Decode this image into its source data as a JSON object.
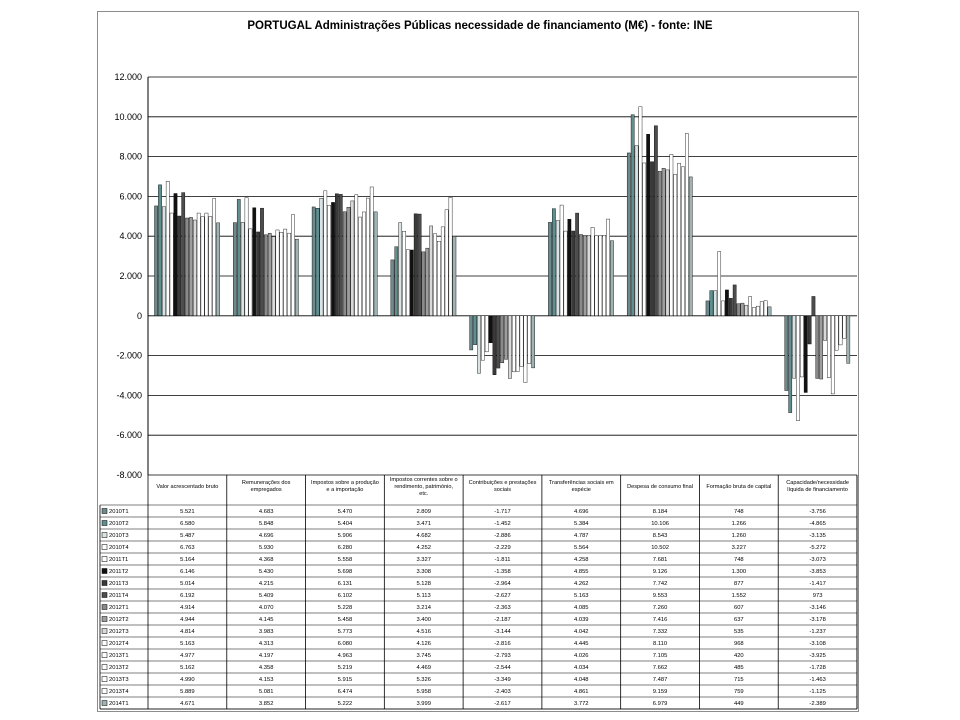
{
  "chart_data": {
    "type": "bar",
    "title": "PORTUGAL Administrações Públicas necessidade de financiamento (M€) - fonte: INE",
    "ylim": [
      -8000,
      12000
    ],
    "ytick_values": [
      12000,
      10000,
      8000,
      6000,
      4000,
      2000,
      0,
      -2000,
      -4000,
      -6000,
      -8000
    ],
    "ytick_labels": [
      "12.000",
      "10.000",
      "8.000",
      "6.000",
      "4.000",
      "2.000",
      "0",
      "-2.000",
      "-4.000",
      "-6.000",
      "-8.000"
    ],
    "grid": true,
    "legend": "data-table",
    "categories": [
      "Valor acrescentado bruto",
      "Remunerações dos empregados",
      "Impostos sobre a produção e a importação",
      "Impostos correntes sobre o rendimento, património, etc.",
      "Contribuições e prestações sociais",
      "Transferências sociais em espécie",
      "Despesa de consumo final",
      "Formação bruta de capital",
      "Capacidade/necessidade líquida de financiamento"
    ],
    "series": [
      {
        "name": "2010T1",
        "color": "#6f8a8c",
        "values": [
          5521,
          4683,
          5470,
          2809,
          -1717,
          4696,
          8184,
          748,
          -3756
        ],
        "labels": [
          "5.521",
          "4.683",
          "5.470",
          "2.809",
          "-1.717",
          "4.696",
          "8.184",
          "748",
          "-3.756"
        ]
      },
      {
        "name": "2010T2",
        "color": "#5f8f8f",
        "values": [
          6580,
          5848,
          5404,
          3471,
          -1452,
          5384,
          10106,
          1266,
          -4865
        ],
        "labels": [
          "6.580",
          "5.848",
          "5.404",
          "3.471",
          "-1.452",
          "5.384",
          "10.106",
          "1.266",
          "-4.865"
        ]
      },
      {
        "name": "2010T3",
        "color": "#d9e3e3",
        "values": [
          5487,
          4696,
          5906,
          4682,
          -2886,
          4787,
          8543,
          1260,
          -3135
        ],
        "labels": [
          "5.487",
          "4.696",
          "5.906",
          "4.682",
          "-2.886",
          "4.787",
          "8.543",
          "1.260",
          "-3.135"
        ]
      },
      {
        "name": "2010T4",
        "color": "#ffffff",
        "values": [
          6763,
          5930,
          6280,
          4252,
          -2229,
          5564,
          10502,
          3227,
          -5272
        ],
        "labels": [
          "6.763",
          "5.930",
          "6.280",
          "4.252",
          "-2.229",
          "5.564",
          "10.502",
          "3.227",
          "-5.272"
        ]
      },
      {
        "name": "2011T1",
        "color": "#ffffff",
        "values": [
          5164,
          4368,
          5558,
          3327,
          -1811,
          4258,
          7681,
          748,
          -3073
        ],
        "labels": [
          "5.164",
          "4.368",
          "5.558",
          "3.327",
          "-1.811",
          "4.258",
          "7.681",
          "748",
          "-3.073"
        ]
      },
      {
        "name": "2011T2",
        "color": "#111111",
        "values": [
          6146,
          5430,
          5698,
          3308,
          -1358,
          4855,
          9126,
          1300,
          -3853
        ],
        "labels": [
          "6.146",
          "5.430",
          "5.698",
          "3.308",
          "-1.358",
          "4.855",
          "9.126",
          "1.300",
          "-3.853"
        ]
      },
      {
        "name": "2011T3",
        "color": "#3a3a3a",
        "values": [
          5014,
          4215,
          6131,
          5128,
          -2964,
          4262,
          7742,
          877,
          -1417
        ],
        "labels": [
          "5.014",
          "4.215",
          "6.131",
          "5.128",
          "-2.964",
          "4.262",
          "7.742",
          "877",
          "-1.417"
        ]
      },
      {
        "name": "2011T4",
        "color": "#4d4d4d",
        "values": [
          6192,
          5409,
          6102,
          5113,
          -2627,
          5163,
          9553,
          1552,
          973
        ],
        "labels": [
          "6.192",
          "5.409",
          "6.102",
          "5.113",
          "-2.627",
          "5.163",
          "9.553",
          "1.552",
          "973"
        ]
      },
      {
        "name": "2012T1",
        "color": "#8a8a8a",
        "values": [
          4914,
          4070,
          5228,
          3214,
          -2363,
          4085,
          7260,
          607,
          -3146
        ],
        "labels": [
          "4.914",
          "4.070",
          "5.228",
          "3.214",
          "-2.363",
          "4.085",
          "7.260",
          "607",
          "-3.146"
        ]
      },
      {
        "name": "2012T2",
        "color": "#9e9e9e",
        "values": [
          4944,
          4145,
          5458,
          3400,
          -2187,
          4039,
          7416,
          637,
          -3178
        ],
        "labels": [
          "4.944",
          "4.145",
          "5.458",
          "3.400",
          "-2.187",
          "4.039",
          "7.416",
          "637",
          "-3.178"
        ]
      },
      {
        "name": "2012T3",
        "color": "#d9d9d9",
        "values": [
          4814,
          3983,
          5773,
          4516,
          -3144,
          4042,
          7332,
          535,
          -1237
        ],
        "labels": [
          "4.814",
          "3.983",
          "5.773",
          "4.516",
          "-3.144",
          "4.042",
          "7.332",
          "535",
          "-1.237"
        ]
      },
      {
        "name": "2012T4",
        "color": "#ffffff",
        "values": [
          5163,
          4313,
          6080,
          4126,
          -2816,
          4445,
          8110,
          968,
          -3108
        ],
        "labels": [
          "5.163",
          "4.313",
          "6.080",
          "4.126",
          "-2.816",
          "4.445",
          "8.110",
          "968",
          "-3.108"
        ]
      },
      {
        "name": "2013T1",
        "color": "#ffffff",
        "values": [
          4977,
          4197,
          4963,
          3745,
          -2793,
          4026,
          7105,
          420,
          -3925
        ],
        "labels": [
          "4.977",
          "4.197",
          "4.963",
          "3.745",
          "-2.793",
          "4.026",
          "7.105",
          "420",
          "-3.925"
        ]
      },
      {
        "name": "2013T2",
        "color": "#ffffff",
        "values": [
          5162,
          4358,
          5219,
          4469,
          -2544,
          4034,
          7662,
          485,
          -1728
        ],
        "labels": [
          "5.162",
          "4.358",
          "5.219",
          "4.469",
          "-2.544",
          "4.034",
          "7.662",
          "485",
          "-1.728"
        ]
      },
      {
        "name": "2013T3",
        "color": "#ffffff",
        "values": [
          4990,
          4153,
          5915,
          5326,
          -3349,
          4048,
          7487,
          715,
          -1463
        ],
        "labels": [
          "4.990",
          "4.153",
          "5.915",
          "5.326",
          "-3.349",
          "4.048",
          "7.487",
          "715",
          "-1.463"
        ]
      },
      {
        "name": "2013T4",
        "color": "#ffffff",
        "values": [
          5889,
          5081,
          6474,
          5958,
          -2403,
          4861,
          9159,
          759,
          -1125
        ],
        "labels": [
          "5.889",
          "5.081",
          "6.474",
          "5.958",
          "-2.403",
          "4.861",
          "9.159",
          "759",
          "-1.125"
        ]
      },
      {
        "name": "2014T1",
        "color": "#9fb3b3",
        "values": [
          4671,
          3852,
          5222,
          3999,
          -2617,
          3772,
          6979,
          449,
          -2389
        ],
        "labels": [
          "4.671",
          "3.852",
          "5.222",
          "3.999",
          "-2.617",
          "3.772",
          "6.979",
          "449",
          "-2.389"
        ]
      }
    ]
  }
}
